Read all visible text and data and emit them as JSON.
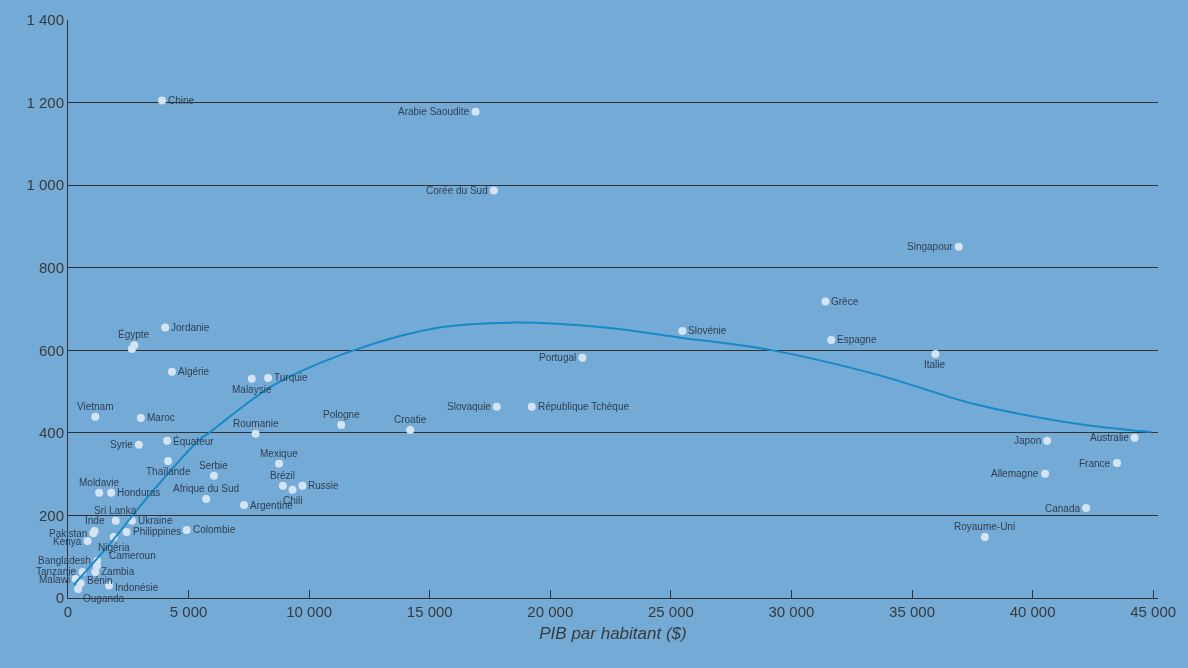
{
  "chart_data": {
    "type": "scatter",
    "xlabel": "PIB par habitant ($)",
    "xlim": [
      0,
      45200
    ],
    "ylim": [
      0,
      1400
    ],
    "xticks": [
      0,
      {
        "value": 5000,
        "label": "5 000"
      },
      {
        "value": 10000,
        "label": "10 000"
      },
      {
        "value": 15000,
        "label": "15 000"
      },
      {
        "value": 20000,
        "label": "20 000"
      },
      {
        "value": 25000,
        "label": "25 000"
      },
      {
        "value": 30000,
        "label": "30 000"
      },
      {
        "value": 35000,
        "label": "35 000"
      },
      {
        "value": 40000,
        "label": "40 000"
      },
      {
        "value": 45000,
        "label": "45 000"
      }
    ],
    "yticks": [
      0,
      200,
      400,
      600,
      800,
      {
        "value": 1000,
        "label": "1 000"
      },
      {
        "value": 1200,
        "label": "1 200"
      },
      {
        "value": 1400,
        "label": "1 400"
      }
    ],
    "grid": "y",
    "marker": "circle",
    "series": [
      {
        "type": "scatter",
        "color": "#d6e4f2",
        "x": [
          3900,
          16900,
          17660,
          36940,
          31410,
          31650,
          25480,
          21330,
          35970,
          17780,
          19230,
          14190,
          11330,
          40600,
          44230,
          43500,
          40520,
          42220,
          38020,
          2750,
          4030,
          4310,
          7620,
          8300,
          1130,
          3020,
          7780,
          2940,
          4110,
          4150,
          6050,
          5730,
          7300,
          8750,
          8910,
          9310,
          9720,
          4920,
          1290,
          1790,
          1980,
          2650,
          1100,
          1050,
          810,
          2430,
          1900,
          1210,
          1200,
          1130,
          600,
          320,
          520,
          420,
          1700,
          2650
        ],
        "values": [
          1205,
          1178,
          987,
          851,
          718,
          625,
          647,
          582,
          591,
          463,
          463,
          407,
          419,
          381,
          388,
          327,
          301,
          218,
          148,
          612,
          655,
          548,
          531,
          533,
          439,
          436,
          398,
          371,
          381,
          332,
          296,
          240,
          225,
          325,
          272,
          262,
          272,
          165,
          255,
          255,
          187,
          187,
          162,
          157,
          138,
          160,
          148,
          90,
          78,
          63,
          63,
          46,
          36,
          22,
          30,
          603
        ]
      },
      {
        "type": "line",
        "color": "#1689c6",
        "line_style": "solid",
        "marker": "none",
        "x": [
          240,
          1690,
          3310,
          5440,
          5850,
          8550,
          11900,
          15400,
          18630,
          22260,
          25480,
          29110,
          33550,
          37580,
          41610,
          44920
        ],
        "values": [
          32,
          128,
          245,
          383,
          400,
          516,
          601,
          655,
          667,
          655,
          630,
          601,
          541,
          470,
          424,
          402
        ]
      }
    ],
    "annotations": [
      {
        "text": "Chine",
        "x": 3900,
        "y": 1205
      },
      {
        "text": "Arabie Saoudite",
        "x": 16900,
        "y": 1178
      },
      {
        "text": "Corée du Sud",
        "x": 17660,
        "y": 987
      },
      {
        "text": "Singapour",
        "x": 36940,
        "y": 851
      },
      {
        "text": "Grèce",
        "x": 31410,
        "y": 718
      },
      {
        "text": "Espagne",
        "x": 31650,
        "y": 625
      },
      {
        "text": "Slovénie",
        "x": 25480,
        "y": 647
      },
      {
        "text": "Portugal",
        "x": 21330,
        "y": 582
      },
      {
        "text": "Italie",
        "x": 35970,
        "y": 591
      },
      {
        "text": "Slovaquie",
        "x": 17780,
        "y": 463
      },
      {
        "text": "République Tchèque",
        "x": 19230,
        "y": 463
      },
      {
        "text": "Croatie",
        "x": 14190,
        "y": 407
      },
      {
        "text": "Pologne",
        "x": 11330,
        "y": 419
      },
      {
        "text": "Japon",
        "x": 40600,
        "y": 381
      },
      {
        "text": "Australie",
        "x": 44230,
        "y": 388
      },
      {
        "text": "France",
        "x": 43500,
        "y": 327
      },
      {
        "text": "Allemagne",
        "x": 40520,
        "y": 301
      },
      {
        "text": "Canada",
        "x": 42220,
        "y": 218
      },
      {
        "text": "Royaume-Uni",
        "x": 38020,
        "y": 148
      },
      {
        "text": "Égypte",
        "x": 2750,
        "y": 612
      },
      {
        "text": "Jordanie",
        "x": 4030,
        "y": 655
      },
      {
        "text": "Algérie",
        "x": 4310,
        "y": 548
      },
      {
        "text": "Malaysie",
        "x": 7620,
        "y": 531
      },
      {
        "text": "Turquie",
        "x": 8300,
        "y": 533
      },
      {
        "text": "Vietnam",
        "x": 1130,
        "y": 439
      },
      {
        "text": "Maroc",
        "x": 3020,
        "y": 436
      },
      {
        "text": "Roumanie",
        "x": 7780,
        "y": 398
      },
      {
        "text": "Syrie",
        "x": 2940,
        "y": 371
      },
      {
        "text": "Équateur",
        "x": 4110,
        "y": 381
      },
      {
        "text": "Thaïlande",
        "x": 4150,
        "y": 332
      },
      {
        "text": "Serbie",
        "x": 6050,
        "y": 296
      },
      {
        "text": "Afrique du Sud",
        "x": 5730,
        "y": 240
      },
      {
        "text": "Argentine",
        "x": 7300,
        "y": 225
      },
      {
        "text": "Mexique",
        "x": 8750,
        "y": 325
      },
      {
        "text": "Brézil",
        "x": 8910,
        "y": 272
      },
      {
        "text": "Chili",
        "x": 9310,
        "y": 262
      },
      {
        "text": "Russie",
        "x": 9720,
        "y": 272
      },
      {
        "text": "Colombie",
        "x": 4920,
        "y": 165
      },
      {
        "text": "Moldavie",
        "x": 1290,
        "y": 255
      },
      {
        "text": "Honduras",
        "x": 1790,
        "y": 255
      },
      {
        "text": "Sri Lanka",
        "x": 1980,
        "y": 187
      },
      {
        "text": "Ukraine",
        "x": 2650,
        "y": 187
      },
      {
        "text": "Inde",
        "x": 1100,
        "y": 162
      },
      {
        "text": "Pakistan",
        "x": 1050,
        "y": 157
      },
      {
        "text": "Kenya",
        "x": 810,
        "y": 138
      },
      {
        "text": "Philippines",
        "x": 2430,
        "y": 160
      },
      {
        "text": "Nigéria",
        "x": 1900,
        "y": 148
      },
      {
        "text": "Bangladesh",
        "x": 1210,
        "y": 90
      },
      {
        "text": "Cameroun",
        "x": 1200,
        "y": 78
      },
      {
        "text": "Zambia",
        "x": 1130,
        "y": 63
      },
      {
        "text": "Tanzanie",
        "x": 600,
        "y": 63
      },
      {
        "text": "Malawi",
        "x": 320,
        "y": 46
      },
      {
        "text": "Bénin",
        "x": 520,
        "y": 36
      },
      {
        "text": "Ouganda",
        "x": 420,
        "y": 22
      },
      {
        "text": "Indonésie",
        "x": 1700,
        "y": 30
      }
    ]
  }
}
